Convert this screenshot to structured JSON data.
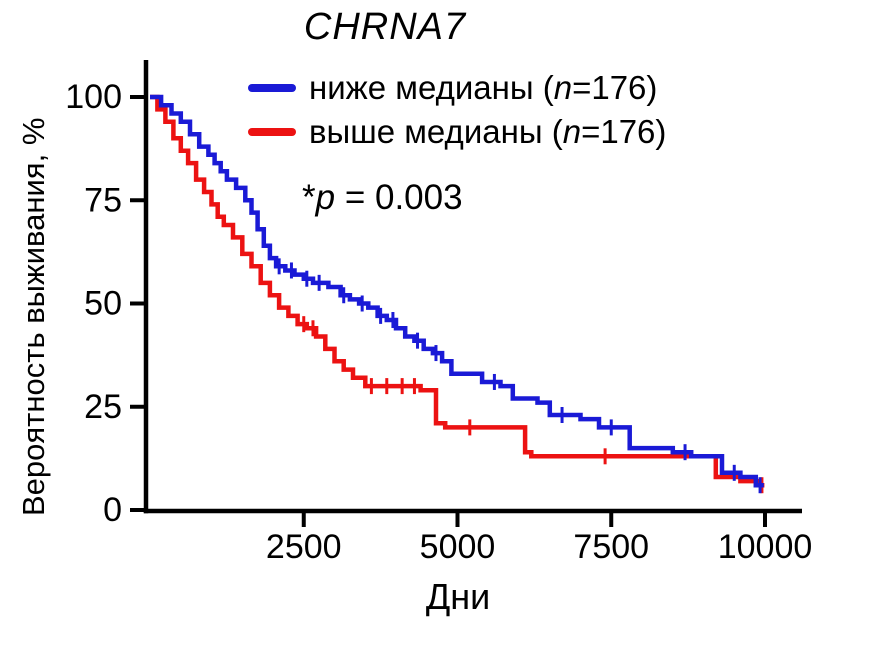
{
  "title": "CHRNA7",
  "legend": {
    "items": [
      {
        "prefix": "ниже медианы (",
        "n": "n",
        "suffix": "=176)",
        "color": "#1a1ad6"
      },
      {
        "prefix": "выше медианы (",
        "n": "n",
        "suffix": "=176)",
        "color": "#ec1212"
      }
    ]
  },
  "annotation": {
    "star": "*",
    "p": "p",
    "rest": " = 0.003"
  },
  "axes": {
    "y_label": "Вероятность выживания, %",
    "x_label": "Дни",
    "y_ticks": [
      0,
      25,
      50,
      75,
      100
    ],
    "x_ticks": [
      2500,
      5000,
      7500,
      10000
    ],
    "x_range": [
      0,
      10000
    ],
    "y_range": [
      0,
      100
    ]
  },
  "chart_data": {
    "type": "line",
    "subtype": "kaplan-meier-step",
    "title": "CHRNA7",
    "xlabel": "Дни",
    "ylabel": "Вероятность выживания, %",
    "xlim": [
      0,
      10000
    ],
    "ylim": [
      0,
      100
    ],
    "p_value": "*p = 0.003",
    "legend_position": "top",
    "grid": false,
    "series": [
      {
        "name": "ниже медианы (n=176)",
        "color": "#1a1ad6",
        "points": [
          [
            0,
            100
          ],
          [
            180,
            98
          ],
          [
            350,
            96
          ],
          [
            500,
            94
          ],
          [
            650,
            91
          ],
          [
            800,
            88
          ],
          [
            950,
            86
          ],
          [
            1050,
            84
          ],
          [
            1150,
            82
          ],
          [
            1250,
            80
          ],
          [
            1400,
            78
          ],
          [
            1550,
            75
          ],
          [
            1650,
            72
          ],
          [
            1750,
            68
          ],
          [
            1850,
            64
          ],
          [
            1950,
            61
          ],
          [
            2050,
            59
          ],
          [
            2200,
            58
          ],
          [
            2350,
            57
          ],
          [
            2500,
            56
          ],
          [
            2650,
            55
          ],
          [
            2900,
            54
          ],
          [
            3100,
            52
          ],
          [
            3250,
            51
          ],
          [
            3400,
            50
          ],
          [
            3550,
            49
          ],
          [
            3700,
            47
          ],
          [
            3850,
            46
          ],
          [
            4000,
            44
          ],
          [
            4150,
            42
          ],
          [
            4300,
            41
          ],
          [
            4450,
            39
          ],
          [
            4600,
            38
          ],
          [
            4750,
            36
          ],
          [
            4900,
            33
          ],
          [
            5400,
            31
          ],
          [
            5700,
            30
          ],
          [
            5900,
            27
          ],
          [
            6300,
            26
          ],
          [
            6500,
            23
          ],
          [
            7000,
            22
          ],
          [
            7300,
            20
          ],
          [
            7800,
            15
          ],
          [
            8500,
            14
          ],
          [
            8800,
            13
          ],
          [
            9300,
            9
          ],
          [
            9600,
            8
          ],
          [
            9850,
            6
          ],
          [
            9980,
            6
          ]
        ],
        "censor_days": [
          2100,
          2300,
          2550,
          2750,
          3150,
          3450,
          3750,
          3950,
          4350,
          4650,
          5600,
          6700,
          7500,
          8700,
          9500,
          9920
        ]
      },
      {
        "name": "выше медианы (n=176)",
        "color": "#ec1212",
        "points": [
          [
            0,
            100
          ],
          [
            120,
            97
          ],
          [
            250,
            94
          ],
          [
            380,
            90
          ],
          [
            500,
            87
          ],
          [
            620,
            84
          ],
          [
            750,
            80
          ],
          [
            880,
            77
          ],
          [
            1000,
            74
          ],
          [
            1100,
            71
          ],
          [
            1200,
            69
          ],
          [
            1350,
            66
          ],
          [
            1500,
            62
          ],
          [
            1650,
            59
          ],
          [
            1800,
            55
          ],
          [
            1950,
            52
          ],
          [
            2100,
            49
          ],
          [
            2250,
            47
          ],
          [
            2400,
            45
          ],
          [
            2550,
            44
          ],
          [
            2700,
            42
          ],
          [
            2850,
            39
          ],
          [
            3000,
            36
          ],
          [
            3150,
            34
          ],
          [
            3300,
            32
          ],
          [
            3500,
            30
          ],
          [
            4400,
            29
          ],
          [
            4650,
            21
          ],
          [
            4800,
            20
          ],
          [
            6100,
            14
          ],
          [
            6200,
            13
          ],
          [
            9100,
            13
          ],
          [
            9200,
            8
          ],
          [
            9600,
            7
          ],
          [
            9900,
            6
          ],
          [
            9990,
            6
          ]
        ],
        "censor_days": [
          2500,
          2650,
          3600,
          3850,
          4100,
          4300,
          5200,
          7400,
          9950
        ]
      }
    ]
  }
}
